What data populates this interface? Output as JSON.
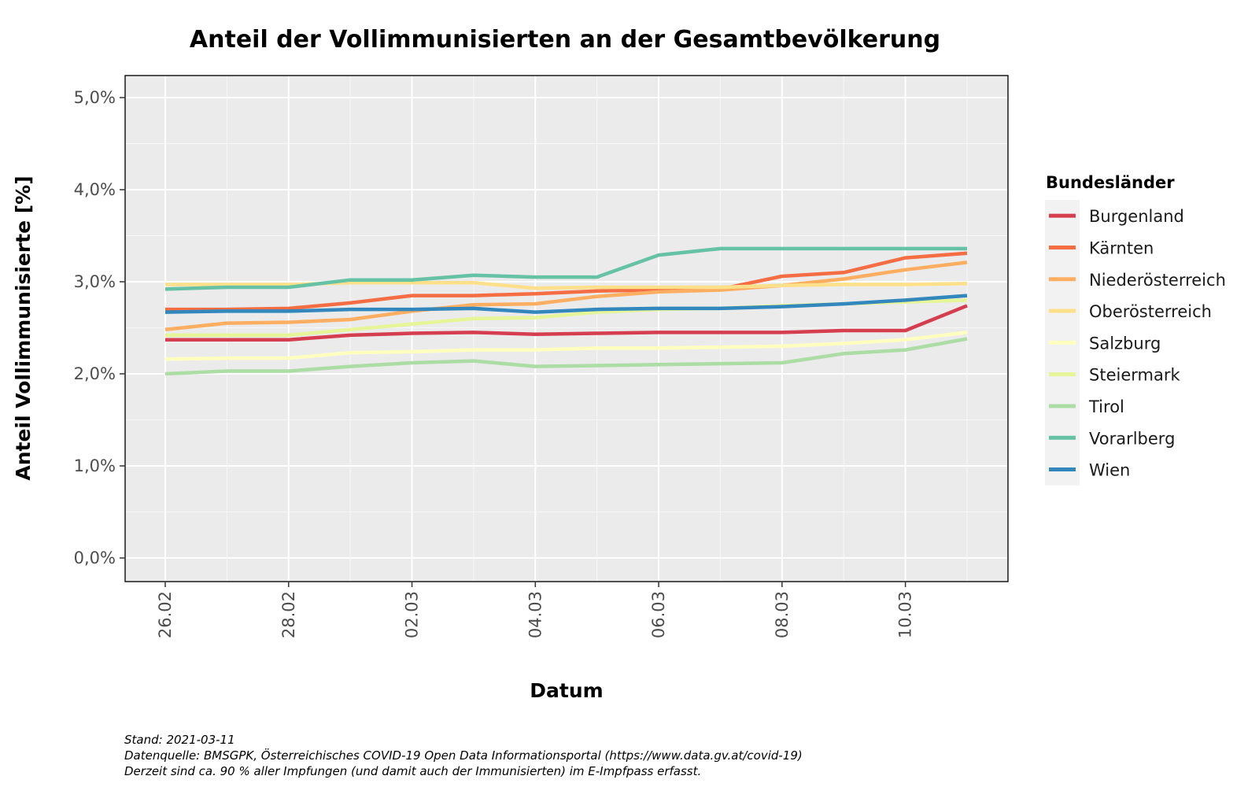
{
  "chart_data": {
    "type": "line",
    "title": "Anteil der Vollimmunisierten an der Gesamtbevölkerung",
    "xlabel": "Datum",
    "ylabel": "Anteil Vollimmunisierte [%]",
    "x": [
      "26.02",
      "27.02",
      "28.02",
      "01.03",
      "02.03",
      "03.03",
      "04.03",
      "05.03",
      "06.03",
      "07.03",
      "08.03",
      "09.03",
      "10.03",
      "11.03"
    ],
    "x_tick_labels": [
      "26.02",
      "28.02",
      "02.03",
      "04.03",
      "06.03",
      "08.03",
      "10.03"
    ],
    "x_tick_indices": [
      0,
      2,
      4,
      6,
      8,
      10,
      12
    ],
    "ylim": [
      0,
      5
    ],
    "y_ticks": [
      0,
      1,
      2,
      3,
      4,
      5
    ],
    "y_tick_labels": [
      "0,0%",
      "1,0%",
      "2,0%",
      "3,0%",
      "4,0%",
      "5,0%"
    ],
    "grid": true,
    "legend_title": "Bundesländer",
    "legend_position": "right",
    "series": [
      {
        "name": "Burgenland",
        "color": "#d53e4f",
        "values": [
          2.37,
          2.37,
          2.37,
          2.42,
          2.44,
          2.45,
          2.43,
          2.44,
          2.45,
          2.45,
          2.45,
          2.47,
          2.47,
          2.74
        ]
      },
      {
        "name": "Kärnten",
        "color": "#f46d43",
        "values": [
          2.7,
          2.7,
          2.71,
          2.77,
          2.85,
          2.85,
          2.87,
          2.9,
          2.91,
          2.92,
          3.06,
          3.1,
          3.26,
          3.31
        ]
      },
      {
        "name": "Niederösterreich",
        "color": "#fdae61",
        "values": [
          2.48,
          2.55,
          2.56,
          2.59,
          2.68,
          2.75,
          2.76,
          2.84,
          2.89,
          2.91,
          2.96,
          3.03,
          3.13,
          3.21
        ]
      },
      {
        "name": "Oberösterreich",
        "color": "#fee08b",
        "values": [
          2.97,
          2.97,
          2.97,
          2.99,
          2.99,
          2.99,
          2.93,
          2.94,
          2.94,
          2.94,
          2.96,
          2.97,
          2.97,
          2.98
        ]
      },
      {
        "name": "Salzburg",
        "color": "#ffffbf",
        "values": [
          2.16,
          2.17,
          2.17,
          2.23,
          2.24,
          2.26,
          2.26,
          2.28,
          2.28,
          2.29,
          2.3,
          2.33,
          2.37,
          2.45
        ]
      },
      {
        "name": "Steiermark",
        "color": "#e6f598",
        "values": [
          2.42,
          2.42,
          2.42,
          2.48,
          2.54,
          2.6,
          2.61,
          2.67,
          2.7,
          2.71,
          2.74,
          2.76,
          2.78,
          2.8
        ]
      },
      {
        "name": "Tirol",
        "color": "#abdda4",
        "values": [
          2.0,
          2.03,
          2.03,
          2.08,
          2.12,
          2.14,
          2.08,
          2.09,
          2.1,
          2.11,
          2.12,
          2.22,
          2.26,
          2.38
        ]
      },
      {
        "name": "Vorarlberg",
        "color": "#66c2a5",
        "values": [
          2.92,
          2.94,
          2.94,
          3.02,
          3.02,
          3.07,
          3.05,
          3.05,
          3.29,
          3.36,
          3.36,
          3.36,
          3.36,
          3.36
        ]
      },
      {
        "name": "Wien",
        "color": "#3288bd",
        "values": [
          2.67,
          2.68,
          2.68,
          2.7,
          2.7,
          2.71,
          2.67,
          2.7,
          2.71,
          2.71,
          2.73,
          2.76,
          2.8,
          2.85
        ]
      }
    ]
  },
  "caption": {
    "line1": "Stand: 2021-03-11",
    "line2": "Datenquelle: BMSGPK, Österreichisches COVID-19 Open Data Informationsportal (https://www.data.gv.at/covid-19)",
    "line3": "Derzeit sind ca. 90 % aller Impfungen (und damit auch der Immunisierten) im E-Impfpass erfasst."
  }
}
